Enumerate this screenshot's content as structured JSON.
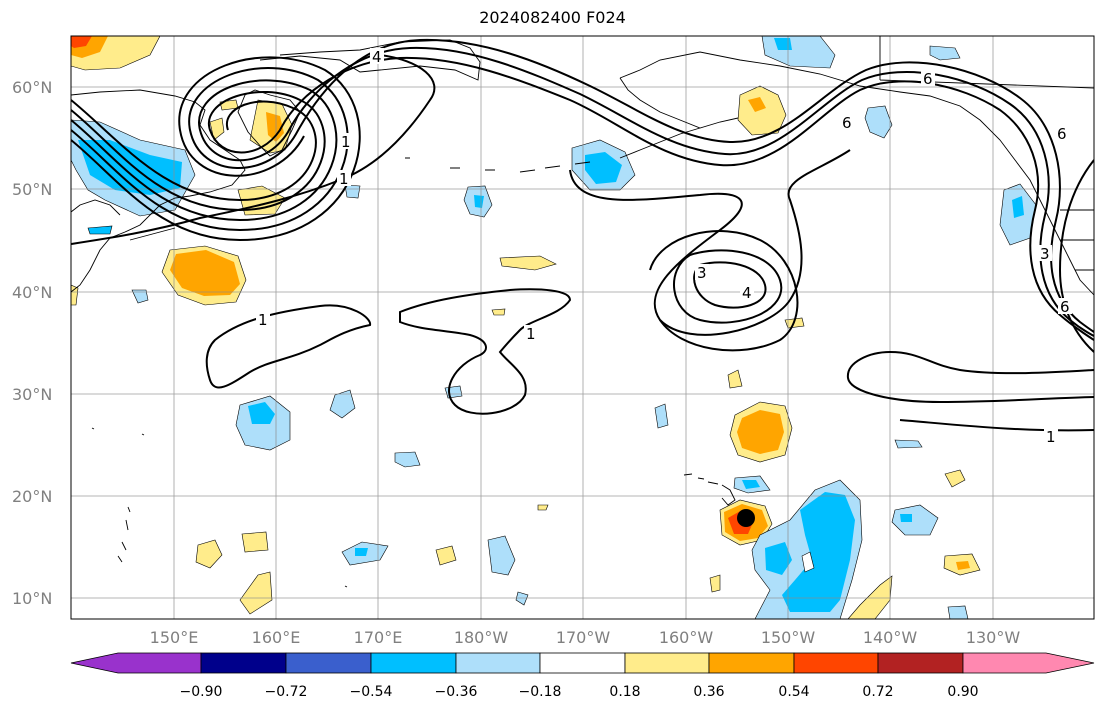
{
  "title": "2024082400 F024",
  "map": {
    "lat_labels": [
      "60°N",
      "50°N",
      "40°N",
      "30°N",
      "20°N",
      "10°N"
    ],
    "lon_labels": [
      "150°E",
      "160°E",
      "170°E",
      "180°W",
      "170°W",
      "160°W",
      "150°W",
      "140°W",
      "130°W"
    ],
    "contour_labels": [
      "4",
      "1",
      "1",
      "6",
      "6",
      "6",
      "3",
      "4",
      "1",
      "1",
      "1",
      "3",
      "6"
    ],
    "marker": "storm-center"
  },
  "colorbar": {
    "colors": [
      "#9932CC",
      "#00008B",
      "#3A5FCD",
      "#00BFFF",
      "#AEDFFA",
      "#FFFFFF",
      "#FFEC8B",
      "#FFA500",
      "#FF4500",
      "#B22222",
      "#FF88B0"
    ],
    "tick_labels": [
      "−0.90",
      "−0.72",
      "−0.54",
      "−0.36",
      "−0.18",
      "0.18",
      "0.36",
      "0.54",
      "0.72",
      "0.90"
    ]
  }
}
